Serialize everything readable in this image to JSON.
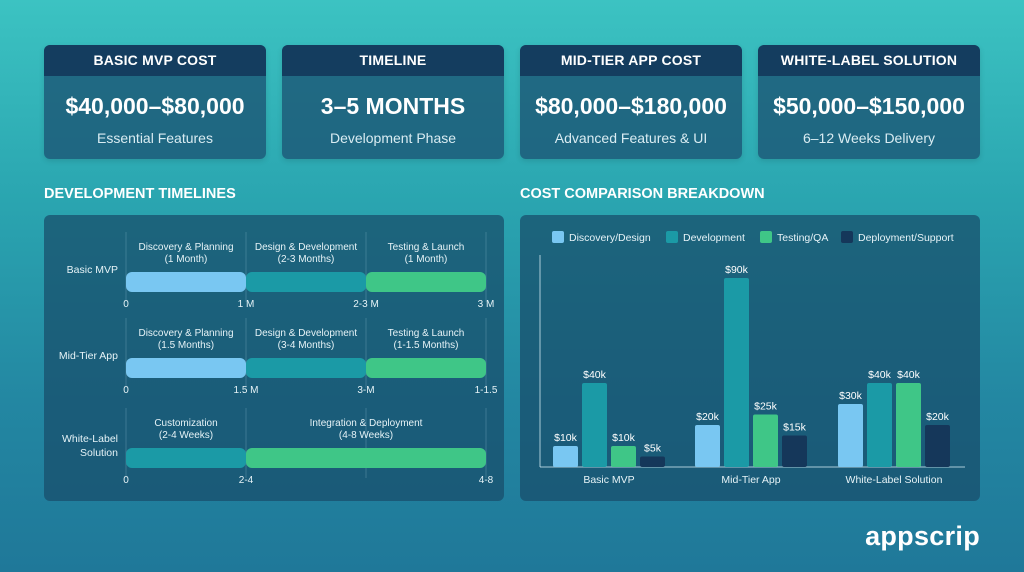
{
  "cards": [
    {
      "title": "BASIC MVP COST",
      "value": "$40,000–$80,000",
      "subtitle": "Essential Features"
    },
    {
      "title": "TIMELINE",
      "value": "3–5 MONTHS",
      "subtitle": "Development Phase"
    },
    {
      "title": "MID-TIER APP COST",
      "value": "$80,000–$180,000",
      "subtitle": "Advanced Features & UI"
    },
    {
      "title": "WHITE-LABEL SOLUTION",
      "value": "$50,000–$150,000",
      "subtitle": "6–12 Weeks Delivery"
    }
  ],
  "timeline_title": "DEVELOPMENT TIMELINES",
  "comparison_title": "COST COMPARISON BREAKDOWN",
  "brand": "appscrip",
  "colors": {
    "discovery": "#79c7f2",
    "development": "#1b9aa6",
    "testing": "#3fc687",
    "support": "#15375a"
  },
  "timeline_rows": [
    {
      "label": [
        "Basic MVP"
      ],
      "phases": [
        {
          "name": "Discovery & Planning",
          "duration": "(1 Month)",
          "start": 0,
          "end": 1,
          "color": "discovery"
        },
        {
          "name": "Design & Development",
          "duration": "(2-3 Months)",
          "start": 1,
          "end": 2,
          "color": "development"
        },
        {
          "name": "Testing & Launch",
          "duration": "(1 Month)",
          "start": 2,
          "end": 3,
          "color": "testing"
        }
      ],
      "ticks": [
        "0",
        "1 M",
        "2-3 M",
        "3 M"
      ]
    },
    {
      "label": [
        "Mid-Tier App"
      ],
      "phases": [
        {
          "name": "Discovery & Planning",
          "duration": "(1.5 Months)",
          "start": 0,
          "end": 1,
          "color": "discovery"
        },
        {
          "name": "Design & Development",
          "duration": "(3-4 Months)",
          "start": 1,
          "end": 2,
          "color": "development"
        },
        {
          "name": "Testing & Launch",
          "duration": "(1-1.5 Months)",
          "start": 2,
          "end": 3,
          "color": "testing"
        }
      ],
      "ticks": [
        "0",
        "1.5 M",
        "3-M",
        "1-1.5"
      ]
    },
    {
      "label": [
        "White-Label",
        "Solution"
      ],
      "phases": [
        {
          "name": "Customization",
          "duration": "(2-4 Weeks)",
          "start": 0,
          "end": 1,
          "color": "development"
        },
        {
          "name": "Integration & Deployment",
          "duration": "(4-8 Weeks)",
          "start": 1,
          "end": 3,
          "color": "testing"
        }
      ],
      "ticks": [
        "0",
        "2-4",
        "4-8"
      ]
    }
  ],
  "chart_data": {
    "type": "bar",
    "categories": [
      "Basic MVP",
      "Mid-Tier App",
      "White-Label Solution"
    ],
    "series": [
      {
        "name": "Discovery/Design",
        "color": "discovery",
        "values": [
          10,
          20,
          30
        ],
        "labels": [
          "$10k",
          "$20k",
          "$30k"
        ]
      },
      {
        "name": "Development",
        "color": "development",
        "values": [
          40,
          90,
          40
        ],
        "labels": [
          "$40k",
          "$90k",
          "$40k"
        ]
      },
      {
        "name": "Testing/QA",
        "color": "testing",
        "values": [
          10,
          25,
          40
        ],
        "labels": [
          "$10k",
          "$25k",
          "$40k"
        ]
      },
      {
        "name": "Deployment/Support",
        "color": "support",
        "values": [
          5,
          15,
          20
        ],
        "labels": [
          "$5k",
          "$15k",
          "$20k"
        ]
      }
    ],
    "ylim": [
      0,
      100
    ],
    "legend": "top"
  }
}
